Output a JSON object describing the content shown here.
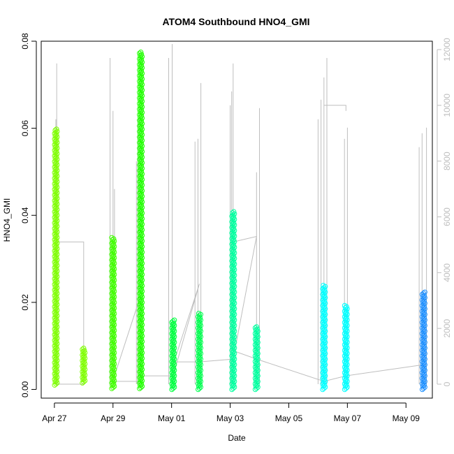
{
  "chart_data": {
    "type": "scatter",
    "title": "ATOM4 Southbound HNO4_GMI",
    "xlabel": "Date",
    "ylabel": "HNO4_GMI",
    "x_ticks": [
      {
        "label": "Apr 27",
        "day": 0
      },
      {
        "label": "Apr 29",
        "day": 2
      },
      {
        "label": "May 01",
        "day": 4
      },
      {
        "label": "May 03",
        "day": 6
      },
      {
        "label": "May 05",
        "day": 8
      },
      {
        "label": "May 07",
        "day": 10
      },
      {
        "label": "May 09",
        "day": 12
      }
    ],
    "xlim_days": [
      -0.45,
      12.9
    ],
    "ylim": [
      -0.002,
      0.08
    ],
    "y_ticks": [
      "0.00",
      "0.02",
      "0.04",
      "0.06",
      "0.08"
    ],
    "y_tick_values": [
      0,
      0.02,
      0.04,
      0.06,
      0.08
    ],
    "y2_ticks": [
      "0",
      "2000",
      "4000",
      "6000",
      "8000",
      "10000",
      "12000"
    ],
    "y2_tick_values": [
      0,
      2000,
      4000,
      6000,
      8000,
      10000,
      12000
    ],
    "y2lim": [
      -500,
      12300
    ],
    "grid": false,
    "legend": "none",
    "point_series": [
      {
        "day": 0.05,
        "min": 0.001,
        "max": 0.06,
        "color": "#7fff00"
      },
      {
        "day": 1.0,
        "min": 0.0015,
        "max": 0.0095,
        "color": "#7fff00"
      },
      {
        "day": 2.0,
        "min": 0.0002,
        "max": 0.035,
        "color": "#40ff00"
      },
      {
        "day": 2.95,
        "min": 0.0002,
        "max": 0.0775,
        "color": "#20ff00"
      },
      {
        "day": 4.05,
        "min": 0.0,
        "max": 0.016,
        "color": "#00ff40"
      },
      {
        "day": 4.95,
        "min": 0.0,
        "max": 0.0175,
        "color": "#00ff50"
      },
      {
        "day": 6.1,
        "min": 0.0,
        "max": 0.041,
        "color": "#00ff9f"
      },
      {
        "day": 6.9,
        "min": 0.0,
        "max": 0.0145,
        "color": "#00ff9f"
      },
      {
        "day": 9.2,
        "min": 0.0,
        "max": 0.024,
        "color": "#00ffff"
      },
      {
        "day": 9.95,
        "min": 0.0,
        "max": 0.0195,
        "color": "#00ffff"
      },
      {
        "day": 12.6,
        "min": 0.0,
        "max": 0.0225,
        "color": "#1e90ff"
      }
    ],
    "altitude_spikes": [
      {
        "day": 0.08,
        "peak": 11500
      },
      {
        "day": 0.05,
        "peak": 9500
      },
      {
        "day": 1.9,
        "peak": 11700
      },
      {
        "day": 2.0,
        "peak": 9800
      },
      {
        "day": 2.05,
        "peak": 7000
      },
      {
        "day": 2.8,
        "peak": 8000
      },
      {
        "day": 2.85,
        "peak": 9500
      },
      {
        "day": 3.9,
        "peak": 11700
      },
      {
        "day": 4.02,
        "peak": 12200
      },
      {
        "day": 4.8,
        "peak": 8700
      },
      {
        "day": 4.9,
        "peak": 8800
      },
      {
        "day": 5.0,
        "peak": 10800
      },
      {
        "day": 6.0,
        "peak": 10000
      },
      {
        "day": 6.05,
        "peak": 10500
      },
      {
        "day": 6.1,
        "peak": 11500
      },
      {
        "day": 6.9,
        "peak": 7600
      },
      {
        "day": 7.0,
        "peak": 9900
      },
      {
        "day": 9.0,
        "peak": 9500
      },
      {
        "day": 9.1,
        "peak": 10200
      },
      {
        "day": 9.2,
        "peak": 11000
      },
      {
        "day": 9.3,
        "peak": 11700
      },
      {
        "day": 9.9,
        "peak": 8800
      },
      {
        "day": 10.0,
        "peak": 9200
      },
      {
        "day": 12.45,
        "peak": 8500
      },
      {
        "day": 12.55,
        "peak": 9000
      },
      {
        "day": 12.7,
        "peak": 9200
      }
    ],
    "altitude_connectors": [
      [
        [
          0.05,
          0
        ],
        [
          1.0,
          0
        ],
        [
          1.0,
          5100
        ],
        [
          0.05,
          5100
        ]
      ],
      [
        [
          2.0,
          100
        ],
        [
          2.95,
          100
        ],
        [
          2.95,
          3200
        ],
        [
          2.05,
          300
        ]
      ],
      [
        [
          2.95,
          300
        ],
        [
          4.05,
          300
        ],
        [
          4.95,
          3600
        ],
        [
          4.05,
          700
        ]
      ],
      [
        [
          4.05,
          800
        ],
        [
          4.95,
          800
        ],
        [
          6.1,
          900
        ],
        [
          6.9,
          5300
        ],
        [
          6.1,
          5100
        ]
      ],
      [
        [
          6.1,
          1200
        ],
        [
          6.9,
          900
        ],
        [
          9.2,
          100
        ],
        [
          9.95,
          300
        ],
        [
          12.6,
          700
        ]
      ],
      [
        [
          9.2,
          10000
        ],
        [
          9.95,
          10000
        ],
        [
          9.95,
          9800
        ]
      ]
    ]
  }
}
